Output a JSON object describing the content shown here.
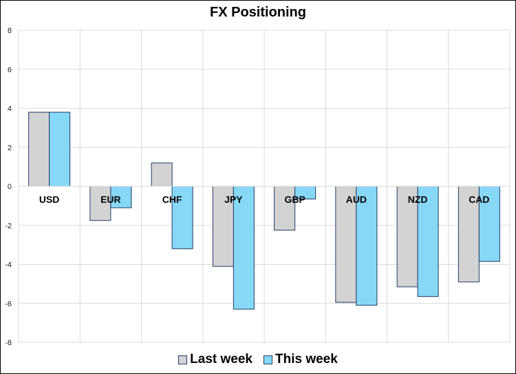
{
  "chart_data": {
    "type": "bar",
    "title": "FX Positioning",
    "categories": [
      "USD",
      "EUR",
      "CHF",
      "JPY",
      "GBP",
      "AUD",
      "NZD",
      "CAD"
    ],
    "series": [
      {
        "name": "Last week",
        "values": [
          3.8,
          -1.75,
          1.2,
          -4.1,
          -2.25,
          -5.95,
          -5.15,
          -4.9
        ],
        "color": "#d3d3d3"
      },
      {
        "name": "This week",
        "values": [
          3.8,
          -1.1,
          -3.2,
          -6.3,
          -0.65,
          -6.1,
          -5.65,
          -3.85
        ],
        "color": "#87d8f7"
      }
    ],
    "ylim": [
      -8,
      8
    ],
    "yticks": [
      8,
      6,
      4,
      2,
      0,
      -2,
      -4,
      -6,
      -8
    ],
    "xlabel": "",
    "ylabel": "",
    "grid": true,
    "legend_position": "bottom",
    "bar_border_color": "#1f3864"
  }
}
